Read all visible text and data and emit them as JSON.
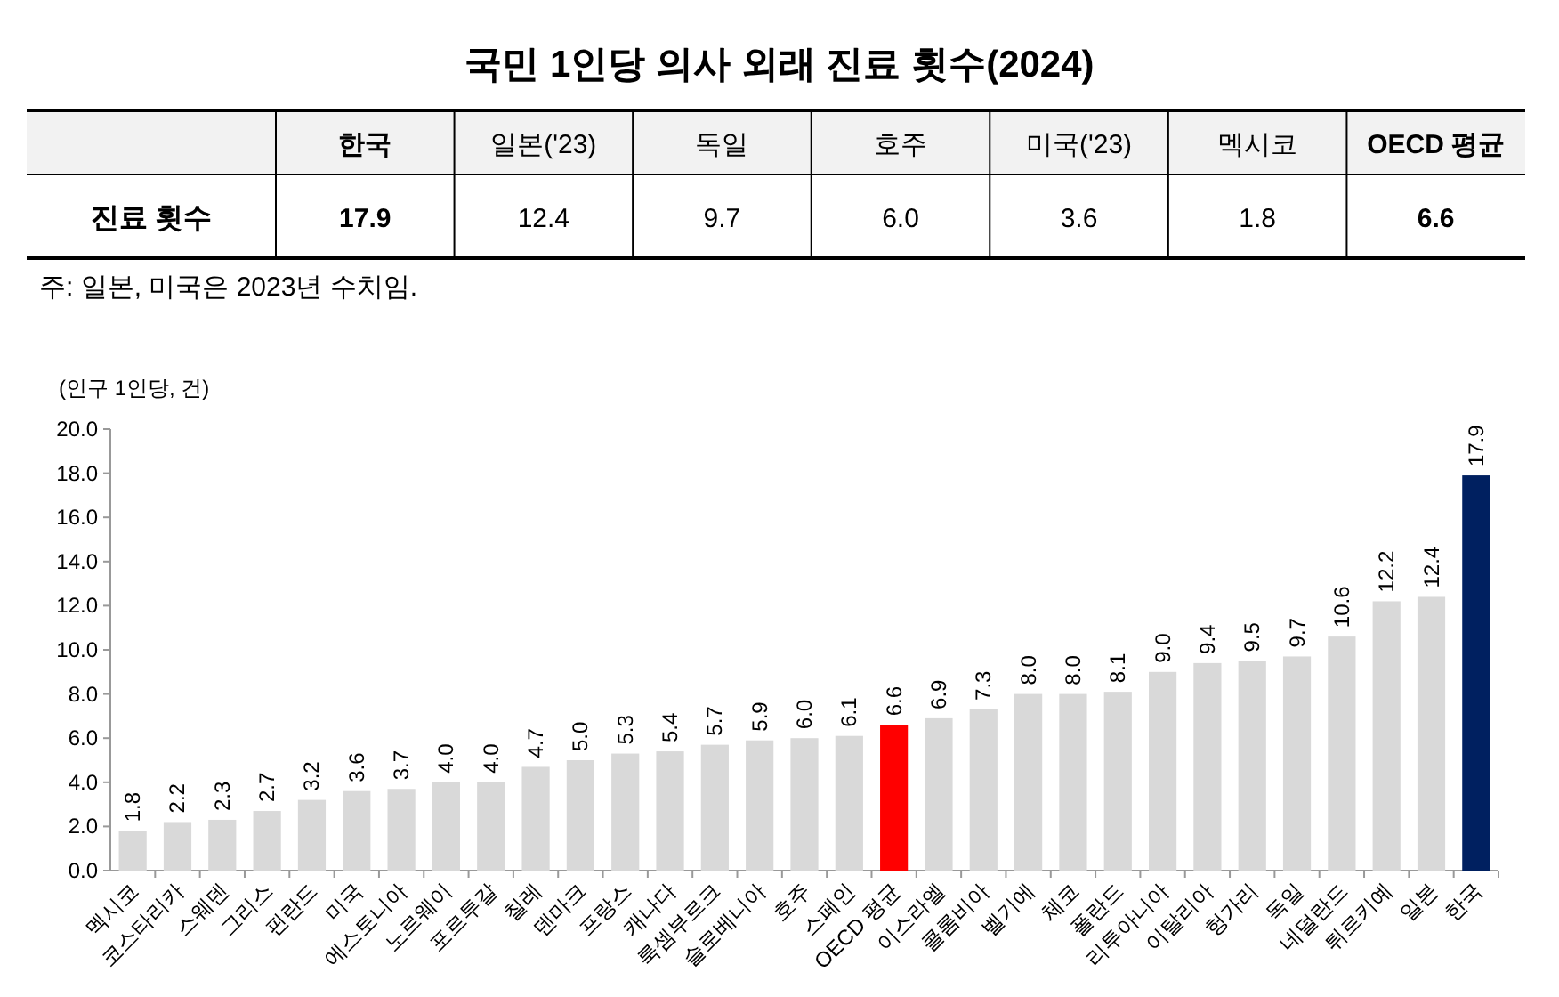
{
  "chart_data": [
    {
      "type": "other",
      "title": "국민 1인당 의사 외래 진료 횟수(2024)",
      "categories": [
        "한국",
        "일본('23)",
        "독일",
        "호주",
        "미국('23)",
        "멕시코",
        "OECD 평균"
      ],
      "values": [
        17.9,
        12.4,
        9.7,
        6.0,
        3.6,
        1.8,
        6.6
      ],
      "value_labels": [
        "17.9",
        "12.4",
        "9.7",
        "6.0",
        "3.6",
        "1.8",
        "6.6"
      ],
      "annotations": [
        "진료 횟수",
        "주: 일본, 미국은 2023년 수치임."
      ]
    },
    {
      "type": "bar",
      "ylabel": "(인구 1인당, 건)",
      "categories": [
        "멕시코",
        "코스타리카",
        "스웨덴",
        "그리스",
        "핀란드",
        "미국",
        "에스토니아",
        "노르웨이",
        "포르투갈",
        "칠레",
        "덴마크",
        "프랑스",
        "캐나다",
        "룩셈부르크",
        "슬로베니아",
        "호주",
        "스페인",
        "OECD 평균",
        "이스라엘",
        "콜롬비아",
        "벨기에",
        "체코",
        "폴란드",
        "리투아니아",
        "이탈리아",
        "헝가리",
        "독일",
        "네덜란드",
        "튀르키예",
        "일본",
        "한국"
      ],
      "values": [
        1.8,
        2.2,
        2.3,
        2.7,
        3.2,
        3.6,
        3.7,
        4.0,
        4.0,
        4.7,
        5.0,
        5.3,
        5.4,
        5.7,
        5.9,
        6.0,
        6.1,
        6.6,
        6.9,
        7.3,
        8.0,
        8.0,
        8.1,
        9.0,
        9.4,
        9.5,
        9.7,
        10.6,
        12.2,
        12.4,
        17.9
      ],
      "value_labels": [
        "1.8",
        "2.2",
        "2.3",
        "2.7",
        "3.2",
        "3.6",
        "3.7",
        "4.0",
        "4.0",
        "4.7",
        "5.0",
        "5.3",
        "5.4",
        "5.7",
        "5.9",
        "6.0",
        "6.1",
        "6.6",
        "6.9",
        "7.3",
        "8.0",
        "8.0",
        "8.1",
        "9.0",
        "9.4",
        "9.5",
        "9.7",
        "10.6",
        "12.2",
        "12.4",
        "17.9"
      ],
      "colors": [
        "#d9d9d9",
        "#d9d9d9",
        "#d9d9d9",
        "#d9d9d9",
        "#d9d9d9",
        "#d9d9d9",
        "#d9d9d9",
        "#d9d9d9",
        "#d9d9d9",
        "#d9d9d9",
        "#d9d9d9",
        "#d9d9d9",
        "#d9d9d9",
        "#d9d9d9",
        "#d9d9d9",
        "#d9d9d9",
        "#d9d9d9",
        "#ff0000",
        "#d9d9d9",
        "#d9d9d9",
        "#d9d9d9",
        "#d9d9d9",
        "#d9d9d9",
        "#d9d9d9",
        "#d9d9d9",
        "#d9d9d9",
        "#d9d9d9",
        "#d9d9d9",
        "#d9d9d9",
        "#d9d9d9",
        "#002060"
      ],
      "ylim": [
        0,
        20
      ],
      "yticks": [
        {
          "value": 0,
          "label": "0.0"
        },
        {
          "value": 2,
          "label": "2.0"
        },
        {
          "value": 4,
          "label": "4.0"
        },
        {
          "value": 6,
          "label": "6.0"
        },
        {
          "value": 8,
          "label": "8.0"
        },
        {
          "value": 10,
          "label": "10.0"
        },
        {
          "value": 12,
          "label": "12.0"
        },
        {
          "value": 14,
          "label": "14.0"
        },
        {
          "value": 16,
          "label": "16.0"
        },
        {
          "value": 18,
          "label": "18.0"
        },
        {
          "value": 20,
          "label": "20.0"
        }
      ],
      "grid": false
    }
  ]
}
